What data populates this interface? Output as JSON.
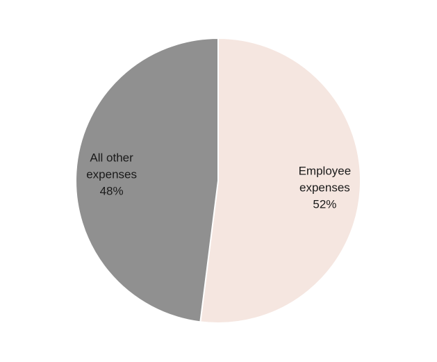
{
  "chart_data": {
    "type": "pie",
    "title": "",
    "slices": [
      {
        "label_lines": [
          "Employee",
          "expenses",
          "52%"
        ],
        "category": "Employee expenses",
        "value": 52,
        "color": "#f5e6e0"
      },
      {
        "label_lines": [
          "All other",
          "expenses",
          "48%"
        ],
        "category": "All other expenses",
        "value": 48,
        "color": "#909090"
      }
    ],
    "start_angle": "12 o'clock, clockwise",
    "legend": "none",
    "labels_inside": true
  }
}
